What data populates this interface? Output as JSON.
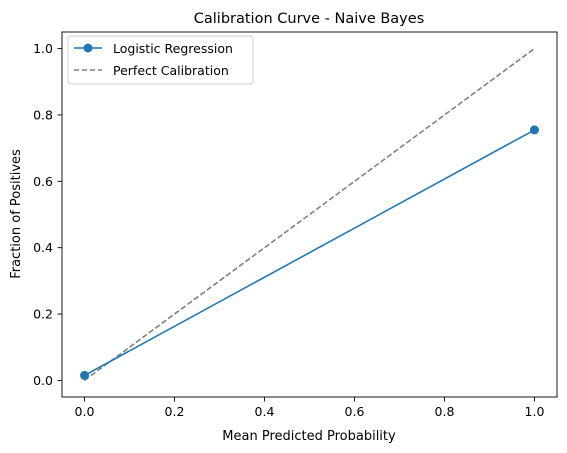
{
  "chart_data": {
    "type": "line",
    "title": "Calibration Curve - Naive Bayes",
    "xlabel": "Mean Predicted Probability",
    "ylabel": "Fraction of Positives",
    "xlim": [
      -0.05,
      1.05
    ],
    "ylim": [
      -0.05,
      1.05
    ],
    "xticks": [
      0.0,
      0.2,
      0.4,
      0.6,
      0.8,
      1.0
    ],
    "yticks": [
      0.0,
      0.2,
      0.4,
      0.6,
      0.8,
      1.0
    ],
    "xtick_labels": [
      "0.0",
      "0.2",
      "0.4",
      "0.6",
      "0.8",
      "1.0"
    ],
    "ytick_labels": [
      "0.0",
      "0.2",
      "0.4",
      "0.6",
      "0.8",
      "1.0"
    ],
    "grid": false,
    "legend_position": "upper-left",
    "series": [
      {
        "name": "Logistic Regression",
        "x": [
          0.0,
          1.0
        ],
        "y": [
          0.015,
          0.755
        ],
        "color": "#1f77b4",
        "style": "solid",
        "marker": "circle"
      },
      {
        "name": "Perfect Calibration",
        "x": [
          0.0,
          1.0
        ],
        "y": [
          0.0,
          1.0
        ],
        "color": "#808080",
        "style": "dashed",
        "marker": "none"
      }
    ]
  }
}
